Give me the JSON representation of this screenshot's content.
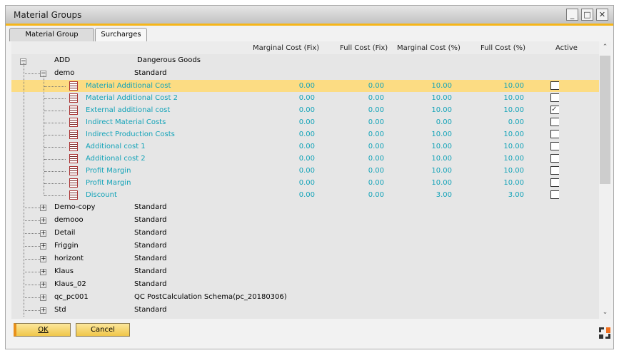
{
  "window": {
    "title": "Material Groups",
    "minimize": "_",
    "maximize": "□",
    "close": "✕"
  },
  "tabs": [
    {
      "label": "Material Group",
      "active": false
    },
    {
      "label": "Surcharges",
      "active": true
    }
  ],
  "columns": {
    "marginal_fix": "Marginal Cost (Fix)",
    "full_fix": "Full Cost (Fix)",
    "marginal_pct": "Marginal Cost (%)",
    "full_pct": "Full Cost (%)",
    "active": "Active"
  },
  "root": {
    "code": "ADD",
    "description": "Dangerous Goods",
    "expanded": true
  },
  "demo": {
    "code": "demo",
    "description": "Standard",
    "expanded": true
  },
  "surcharges": [
    {
      "name": "Material Additional Cost",
      "mf": "0.00",
      "ff": "0.00",
      "mp": "10.00",
      "fp": "10.00",
      "active": false,
      "selected": true
    },
    {
      "name": "Material Additional Cost 2",
      "mf": "0.00",
      "ff": "0.00",
      "mp": "10.00",
      "fp": "10.00",
      "active": false
    },
    {
      "name": "External additional cost",
      "mf": "0.00",
      "ff": "0.00",
      "mp": "10.00",
      "fp": "10.00",
      "active": true
    },
    {
      "name": "Indirect Material Costs",
      "mf": "0.00",
      "ff": "0.00",
      "mp": "0.00",
      "fp": "0.00",
      "active": false
    },
    {
      "name": "Indirect Production Costs",
      "mf": "0.00",
      "ff": "0.00",
      "mp": "10.00",
      "fp": "10.00",
      "active": false
    },
    {
      "name": "Additional cost 1",
      "mf": "0.00",
      "ff": "0.00",
      "mp": "10.00",
      "fp": "10.00",
      "active": false
    },
    {
      "name": "Additional cost 2",
      "mf": "0.00",
      "ff": "0.00",
      "mp": "10.00",
      "fp": "10.00",
      "active": false
    },
    {
      "name": "Profit Margin",
      "mf": "0.00",
      "ff": "0.00",
      "mp": "10.00",
      "fp": "10.00",
      "active": false
    },
    {
      "name": "Profit Margin",
      "mf": "0.00",
      "ff": "0.00",
      "mp": "10.00",
      "fp": "10.00",
      "active": false
    },
    {
      "name": "Discount",
      "mf": "0.00",
      "ff": "0.00",
      "mp": "3.00",
      "fp": "3.00",
      "active": false
    }
  ],
  "groups": [
    {
      "code": "Demo-copy",
      "description": "Standard"
    },
    {
      "code": "demooo",
      "description": "Standard"
    },
    {
      "code": "Detail",
      "description": "Standard"
    },
    {
      "code": "Friggin",
      "description": "Standard"
    },
    {
      "code": "horizont",
      "description": "Standard"
    },
    {
      "code": "Klaus",
      "description": "Standard"
    },
    {
      "code": "Klaus_02",
      "description": "Standard"
    },
    {
      "code": "qc_pc001",
      "description": "QC PostCalculation Schema(pc_20180306)"
    },
    {
      "code": "Std",
      "description": "Standard"
    }
  ],
  "buttons": {
    "ok": "OK",
    "cancel": "Cancel"
  },
  "colors": {
    "accent": "#f6b619",
    "selected_row": "#fcdc83",
    "link_text": "#13a3b8"
  }
}
